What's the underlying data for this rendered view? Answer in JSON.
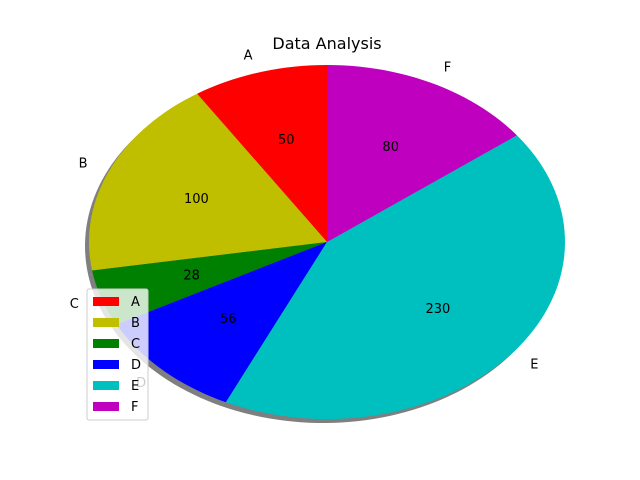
{
  "chart_data": {
    "type": "pie",
    "title": "Data Analysis",
    "categories": [
      "A",
      "B",
      "C",
      "D",
      "E",
      "F"
    ],
    "values": [
      50,
      100,
      28,
      56,
      230,
      80
    ],
    "colors": [
      "#ff0000",
      "#bfbf00",
      "#008000",
      "#0000ff",
      "#00bfbf",
      "#bf00bf"
    ],
    "start_angle_deg": 90,
    "counterclockwise": true,
    "shadow": true,
    "value_labels": [
      "50",
      "100",
      "28",
      "56",
      "230",
      "80"
    ],
    "legend": {
      "placement": "lower-left",
      "entries": [
        "A",
        "B",
        "C",
        "D",
        "E",
        "F"
      ]
    }
  }
}
